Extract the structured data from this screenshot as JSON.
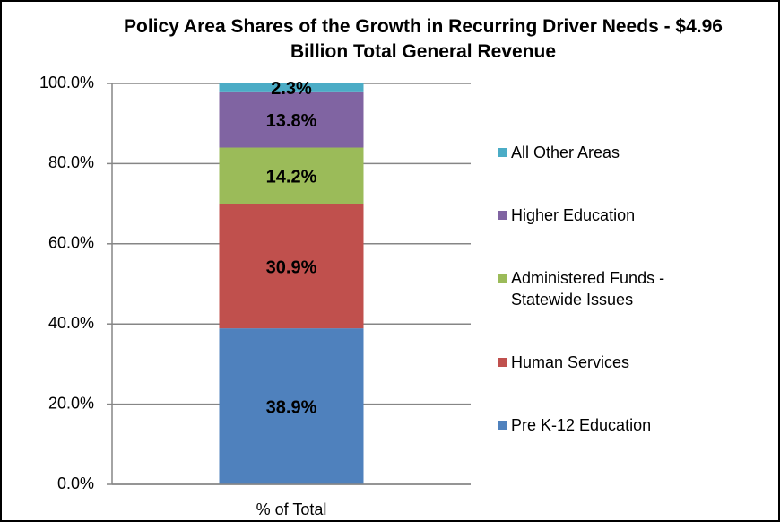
{
  "chart_data": {
    "type": "stacked_bar",
    "title": "Policy Area Shares of the Growth in Recurring Driver Needs - $4.96 Billion Total General Revenue",
    "categories": [
      "% of Total"
    ],
    "series": [
      {
        "name": "Pre K-12 Education",
        "color": "#4f81bd",
        "values": [
          38.9
        ],
        "value_labels": [
          "38.9%"
        ]
      },
      {
        "name": "Human Services",
        "color": "#c0504d",
        "values": [
          30.9
        ],
        "value_labels": [
          "30.9%"
        ]
      },
      {
        "name": "Administered Funds - Statewide Issues",
        "color": "#9bbb59",
        "values": [
          14.2
        ],
        "value_labels": [
          "14.2%"
        ]
      },
      {
        "name": "Higher Education",
        "color": "#8064a2",
        "values": [
          13.8
        ],
        "value_labels": [
          "13.8%"
        ]
      },
      {
        "name": "All Other Areas",
        "color": "#4bacc6",
        "values": [
          2.3
        ],
        "value_labels": [
          "2.3%"
        ]
      }
    ],
    "ylim": [
      0,
      100
    ],
    "yticks": [
      {
        "value": 0,
        "label": "0.0%"
      },
      {
        "value": 20,
        "label": "20.0%"
      },
      {
        "value": 40,
        "label": "40.0%"
      },
      {
        "value": 60,
        "label": "60.0%"
      },
      {
        "value": 80,
        "label": "80.0%"
      },
      {
        "value": 100,
        "label": "100.0%"
      }
    ],
    "grid": true,
    "legend": "right"
  }
}
